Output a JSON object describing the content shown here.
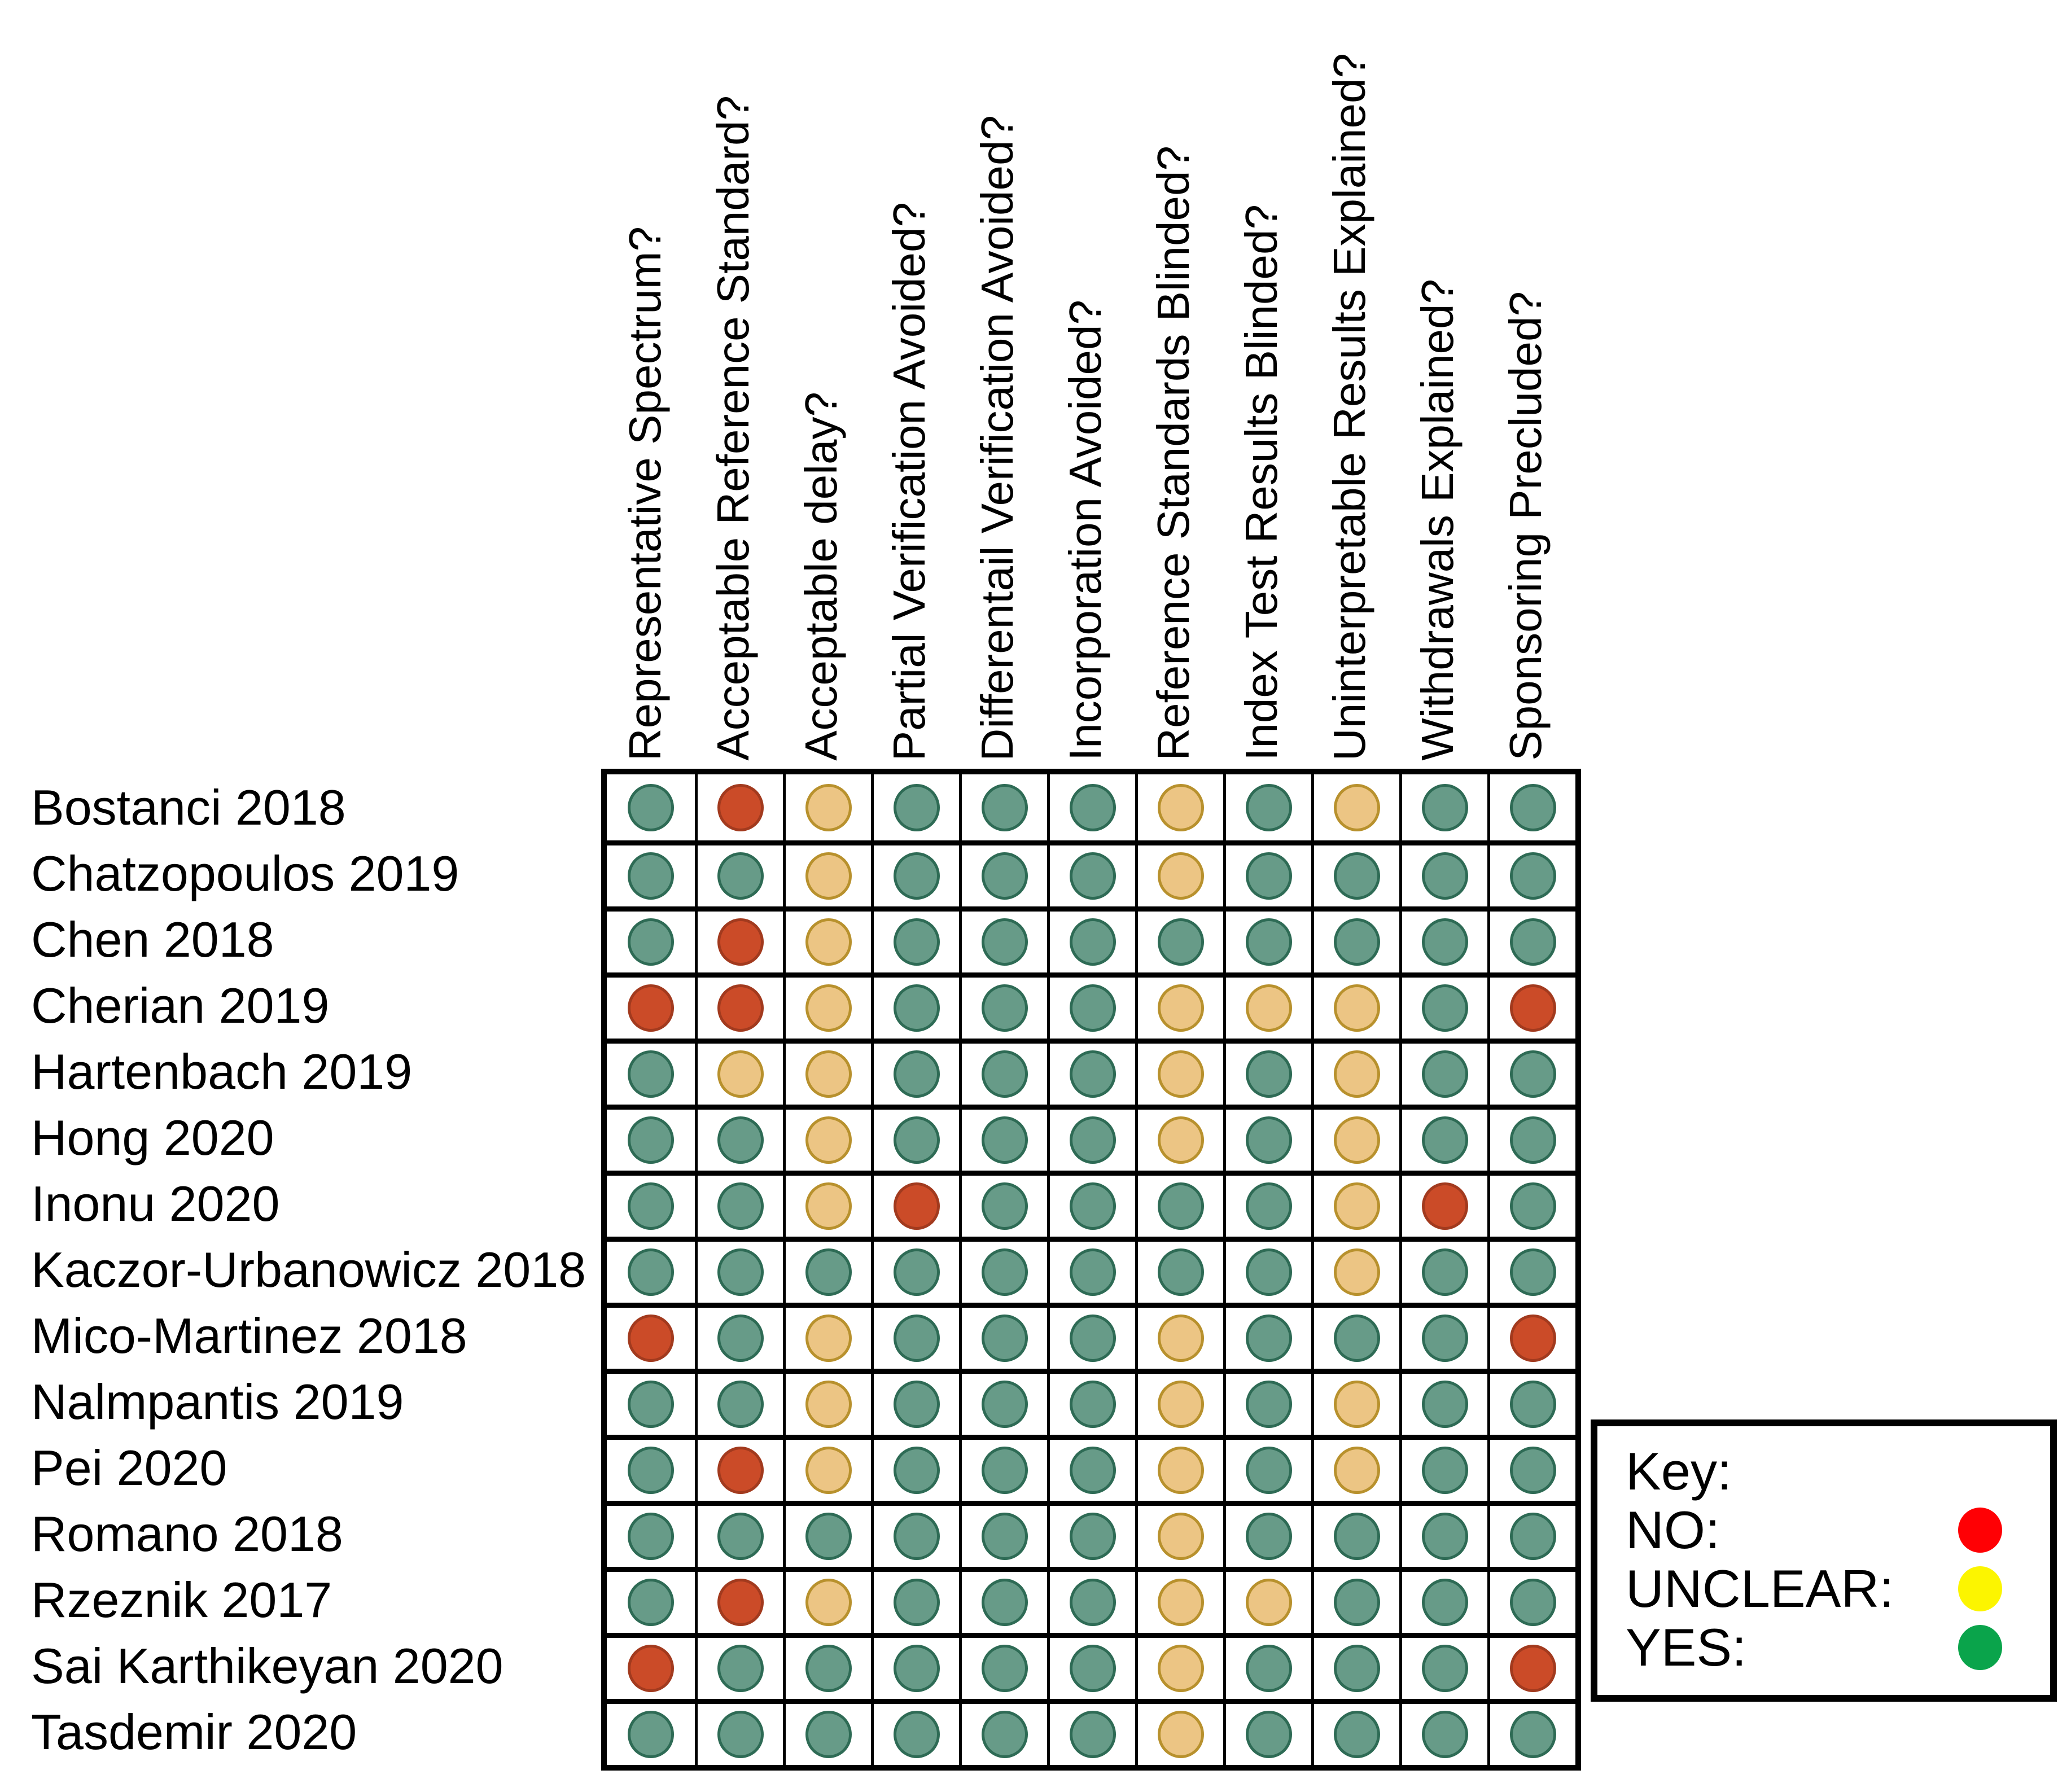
{
  "chart_data": {
    "type": "heatmap",
    "title": "",
    "description": "Methodological quality assessment matrix: studies (rows) vs quality items (columns), dots colored yes / unclear / no",
    "columns": [
      "Representative Spectrum?",
      "Acceptable Reference Standard?",
      "Acceptable delay?",
      "Partial Verification Avoided?",
      "Differentail Verification Avoided?",
      "Incorporation Avoided?",
      "Reference Standards Blinded?",
      "Index Test Results Blinded?",
      "Uninterpretable Results Explained?",
      "Withdrawals Explained?",
      "Sponsoring Precluded?"
    ],
    "rows": [
      {
        "study": "Bostanci 2018",
        "ratings": [
          "yes",
          "no",
          "unclear",
          "yes",
          "yes",
          "yes",
          "unclear",
          "yes",
          "unclear",
          "yes",
          "yes"
        ]
      },
      {
        "study": "Chatzopoulos 2019",
        "ratings": [
          "yes",
          "yes",
          "unclear",
          "yes",
          "yes",
          "yes",
          "unclear",
          "yes",
          "yes",
          "yes",
          "yes"
        ]
      },
      {
        "study": "Chen 2018",
        "ratings": [
          "yes",
          "no",
          "unclear",
          "yes",
          "yes",
          "yes",
          "yes",
          "yes",
          "yes",
          "yes",
          "yes"
        ]
      },
      {
        "study": "Cherian 2019",
        "ratings": [
          "no",
          "no",
          "unclear",
          "yes",
          "yes",
          "yes",
          "unclear",
          "unclear",
          "unclear",
          "yes",
          "no"
        ]
      },
      {
        "study": "Hartenbach 2019",
        "ratings": [
          "yes",
          "unclear",
          "unclear",
          "yes",
          "yes",
          "yes",
          "unclear",
          "yes",
          "unclear",
          "yes",
          "yes"
        ]
      },
      {
        "study": "Hong 2020",
        "ratings": [
          "yes",
          "yes",
          "unclear",
          "yes",
          "yes",
          "yes",
          "unclear",
          "yes",
          "unclear",
          "yes",
          "yes"
        ]
      },
      {
        "study": "Inonu 2020",
        "ratings": [
          "yes",
          "yes",
          "unclear",
          "no",
          "yes",
          "yes",
          "yes",
          "yes",
          "unclear",
          "no",
          "yes"
        ]
      },
      {
        "study": "Kaczor-Urbanowicz 2018",
        "ratings": [
          "yes",
          "yes",
          "yes",
          "yes",
          "yes",
          "yes",
          "yes",
          "yes",
          "unclear",
          "yes",
          "yes"
        ]
      },
      {
        "study": "Mico-Martinez 2018",
        "ratings": [
          "no",
          "yes",
          "unclear",
          "yes",
          "yes",
          "yes",
          "unclear",
          "yes",
          "yes",
          "yes",
          "no"
        ]
      },
      {
        "study": "Nalmpantis 2019",
        "ratings": [
          "yes",
          "yes",
          "unclear",
          "yes",
          "yes",
          "yes",
          "unclear",
          "yes",
          "unclear",
          "yes",
          "yes"
        ]
      },
      {
        "study": "Pei 2020",
        "ratings": [
          "yes",
          "no",
          "unclear",
          "yes",
          "yes",
          "yes",
          "unclear",
          "yes",
          "unclear",
          "yes",
          "yes"
        ]
      },
      {
        "study": "Romano 2018",
        "ratings": [
          "yes",
          "yes",
          "yes",
          "yes",
          "yes",
          "yes",
          "unclear",
          "yes",
          "yes",
          "yes",
          "yes"
        ]
      },
      {
        "study": "Rzeznik 2017",
        "ratings": [
          "yes",
          "no",
          "unclear",
          "yes",
          "yes",
          "yes",
          "unclear",
          "unclear",
          "yes",
          "yes",
          "yes"
        ]
      },
      {
        "study": "Sai Karthikeyan 2020",
        "ratings": [
          "no",
          "yes",
          "yes",
          "yes",
          "yes",
          "yes",
          "unclear",
          "yes",
          "yes",
          "yes",
          "no"
        ]
      },
      {
        "study": "Tasdemir 2020",
        "ratings": [
          "yes",
          "yes",
          "yes",
          "yes",
          "yes",
          "yes",
          "unclear",
          "yes",
          "yes",
          "yes",
          "yes"
        ]
      }
    ],
    "legend_position": "bottom-right"
  },
  "cell_colors": {
    "yes": {
      "fill": "#679b88",
      "border": "#2e6b55"
    },
    "no": {
      "fill": "#cb4b28",
      "border": "#a23a1e"
    },
    "unclear": {
      "fill": "#ecc584",
      "border": "#b8912d"
    }
  },
  "key": {
    "title": "Key:",
    "entries": [
      {
        "label": "NO:",
        "value": "no",
        "color": "#ff0004"
      },
      {
        "label": "UNCLEAR:",
        "value": "unclear",
        "color": "#fcf500"
      },
      {
        "label": "YES:",
        "value": "yes",
        "color": "#0aa44b"
      }
    ]
  }
}
